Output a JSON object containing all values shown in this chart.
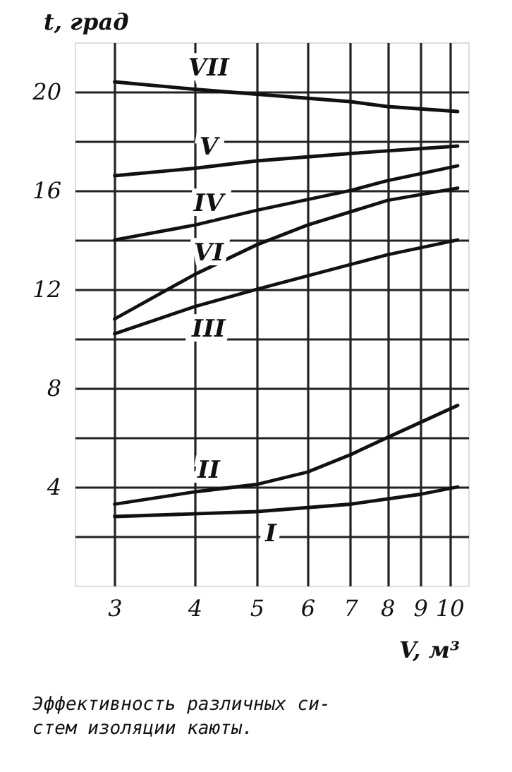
{
  "chart_data": {
    "type": "line",
    "xlabel": "V, м³",
    "ylabel": "t, град",
    "log": "x",
    "xlim": [
      2.6,
      10.7
    ],
    "xticks": [
      3,
      4,
      5,
      6,
      7,
      8,
      9,
      10
    ],
    "ylim": [
      0,
      22
    ],
    "yticks": [
      {
        "value": 2,
        "label": null
      },
      4,
      {
        "value": 6,
        "label": null
      },
      8,
      {
        "value": 10,
        "label": null
      },
      12,
      {
        "value": 14,
        "label": null
      },
      16,
      {
        "value": 18,
        "label": null
      },
      20
    ],
    "grid": true,
    "marker": "none",
    "line_style": "solid",
    "series": [
      {
        "name": "VII",
        "color": "#111111",
        "x": [
          3,
          4,
          5,
          7,
          8,
          10.3
        ],
        "values": [
          20.4,
          20.1,
          19.9,
          19.6,
          19.4,
          19.2
        ]
      },
      {
        "name": "V",
        "color": "#111111",
        "x": [
          3,
          4,
          5,
          7,
          10.3
        ],
        "values": [
          16.6,
          16.9,
          17.2,
          17.5,
          17.8
        ]
      },
      {
        "name": "IV",
        "color": "#111111",
        "x": [
          3,
          4,
          5,
          7,
          8,
          10.3
        ],
        "values": [
          14.0,
          14.6,
          15.2,
          16.0,
          16.4,
          17.0
        ]
      },
      {
        "name": "VI",
        "color": "#111111",
        "x": [
          3,
          4,
          5,
          6,
          8,
          10.3
        ],
        "values": [
          10.8,
          12.6,
          13.8,
          14.6,
          15.6,
          16.1
        ]
      },
      {
        "name": "III",
        "color": "#111111",
        "x": [
          3,
          4,
          5,
          8,
          10.3
        ],
        "values": [
          10.2,
          11.3,
          12.0,
          13.4,
          14.0
        ]
      },
      {
        "name": "II",
        "color": "#111111",
        "x": [
          3,
          4,
          5,
          6,
          7,
          8,
          10.3
        ],
        "values": [
          3.3,
          3.8,
          4.1,
          4.6,
          5.3,
          6.0,
          7.3
        ]
      },
      {
        "name": "I",
        "color": "#111111",
        "x": [
          3,
          5,
          7,
          9,
          10.3
        ],
        "values": [
          2.8,
          3.0,
          3.3,
          3.7,
          4.0
        ]
      }
    ],
    "annotations": [
      "Эффективность различных си-\nстем изоляции каюты."
    ]
  }
}
